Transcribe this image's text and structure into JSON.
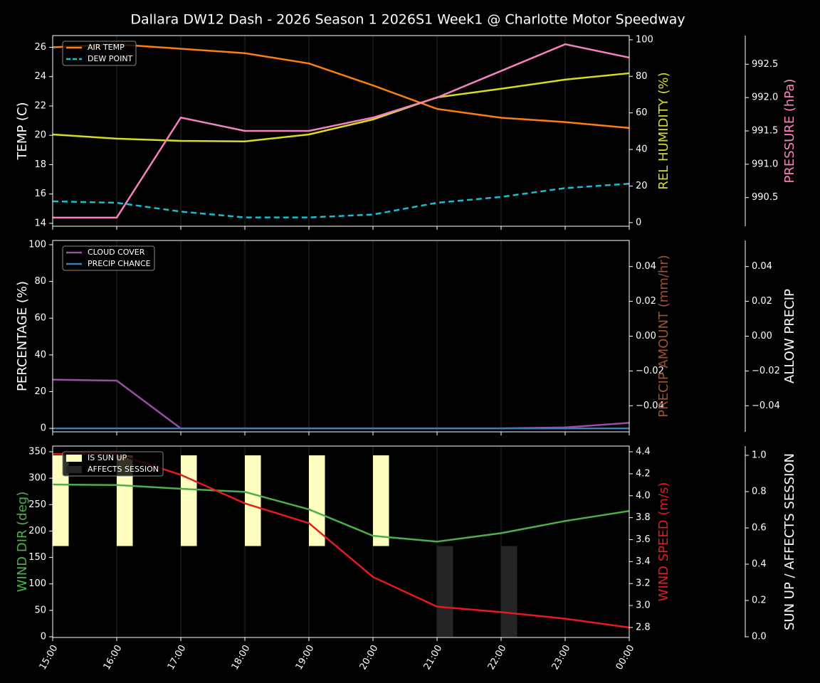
{
  "title": "Dallara DW12 Dash - 2026 Season 1 2026S1 Week1 @ Charlotte Motor Speedway",
  "chart_data": [
    {
      "type": "line",
      "legend": "upper left",
      "xgrid": true,
      "ylabel": "TEMP (C)",
      "ylabel_color": "#ffffff",
      "ylim": [
        13.8,
        26.8
      ],
      "yticks": [
        14,
        16,
        18,
        20,
        22,
        24,
        26
      ],
      "y2label": "REL HUMIDITY (%)",
      "y2label_color": "#d8dc1c",
      "y2lim": [
        -2,
        102.3
      ],
      "y2ticks": [
        0,
        20,
        40,
        60,
        80,
        100
      ],
      "y3label": "PRESSURE (hPa)",
      "y3label_color": "#f781bf",
      "y3lim": [
        990.07,
        992.93
      ],
      "y3ticks": [
        990.5,
        {
          "value": 991,
          "label": "991.0"
        },
        991.5,
        {
          "value": 992,
          "label": "992.0"
        },
        992.5
      ],
      "series": [
        {
          "name": "AIR TEMP",
          "color": "#ff7f0e",
          "kind": "line",
          "axis": "y",
          "values": [
            26.0,
            26.2,
            25.9,
            25.6,
            24.9,
            23.4,
            21.8,
            21.2,
            20.9,
            20.5
          ]
        },
        {
          "name": "DEW POINT",
          "color": "#17becf",
          "kind": "line",
          "dashed": true,
          "axis": "y",
          "values": [
            15.5,
            15.4,
            14.8,
            14.4,
            14.4,
            14.6,
            15.4,
            15.8,
            16.4,
            16.7
          ]
        },
        {
          "color": "#d8dc1c",
          "kind": "line",
          "axis": "y2",
          "values": [
            48.2,
            45.9,
            44.7,
            44.4,
            48.2,
            56.4,
            68.5,
            73.2,
            78.2,
            81.7
          ]
        },
        {
          "color": "#f781bf",
          "kind": "line",
          "axis": "y3",
          "values": [
            990.2,
            990.2,
            991.7,
            991.5,
            991.5,
            991.7,
            992.0,
            992.4,
            992.8,
            992.6
          ]
        }
      ]
    },
    {
      "type": "line",
      "legend": "upper left",
      "xgrid": true,
      "ylabel": "PERCENTAGE (%)",
      "ylabel_color": "#ffffff",
      "ylim": [
        -1.9,
        102.3
      ],
      "yticks": [
        0,
        20,
        40,
        60,
        80,
        100
      ],
      "y2label": "PRECIP AMOUNT (mm/hr)",
      "y2label_color": "#a0522d",
      "y2lim": [
        -0.055,
        0.055
      ],
      "y2ticks": [
        {
          "value": -0.04,
          "label": "−0.04"
        },
        {
          "value": -0.02,
          "label": "−0.02"
        },
        {
          "value": 0,
          "label": "0.00"
        },
        0.02,
        0.04
      ],
      "y3label": "ALLOW PRECIP",
      "y3label_color": "#ffffff",
      "y3lim": [
        -0.055,
        0.055
      ],
      "y3ticks": [
        {
          "value": -0.04,
          "label": "−0.04"
        },
        {
          "value": -0.02,
          "label": "−0.02"
        },
        {
          "value": 0,
          "label": "0.00"
        },
        0.02,
        0.04
      ],
      "series": [
        {
          "name": "CLOUD COVER",
          "color": "#984ea3",
          "kind": "line",
          "axis": "y",
          "values": [
            26.5,
            26,
            0,
            0,
            0,
            0,
            0,
            0,
            0.5,
            3
          ]
        },
        {
          "name": "PRECIP CHANCE",
          "color": "#377eb8",
          "kind": "line",
          "axis": "y",
          "values": [
            0,
            0,
            0,
            0,
            0,
            0,
            0,
            0,
            0,
            0
          ]
        }
      ]
    },
    {
      "type": "line",
      "legend": "upper left",
      "xgrid": true,
      "categories": [
        "15:00",
        "16:00",
        "17:00",
        "18:00",
        "19:00",
        "20:00",
        "21:00",
        "22:00",
        "23:00",
        "00:00"
      ],
      "ylabel": "WIND DIR (deg)",
      "ylabel_color": "#4daf4a",
      "ylim": [
        -1.3,
        360.7
      ],
      "yticks": [
        0,
        50,
        100,
        150,
        200,
        250,
        300,
        350
      ],
      "y2label": "WIND SPEED (m/s)",
      "y2label_color": "#e41a1c",
      "y2lim": [
        2.709,
        4.452
      ],
      "y2ticks": [
        2.8,
        {
          "value": 3,
          "label": "3.0"
        },
        3.2,
        3.4,
        3.6,
        3.8,
        {
          "value": 4,
          "label": "4.0"
        },
        4.2,
        4.4
      ],
      "y3label": "SUN UP / AFFECTS SESSION",
      "y3label_color": "#ffffff",
      "y3lim": [
        -0.004,
        1.051
      ],
      "y3ticks": [
        {
          "value": 0,
          "label": "0.0"
        },
        0.2,
        0.4,
        0.6,
        0.8,
        {
          "value": 1,
          "label": "1.0"
        }
      ],
      "series": [
        {
          "name": "IS SUN UP",
          "color": "#ffffc0",
          "kind": "bar",
          "axis": "y3",
          "base": 0.5,
          "values": [
            0.5,
            0.5,
            0.5,
            0.5,
            0.5,
            0.5,
            0,
            0,
            0,
            0
          ]
        },
        {
          "name": "AFFECTS SESSION",
          "color": "#252525",
          "kind": "bar",
          "axis": "y3",
          "values": [
            0,
            0,
            0,
            0,
            0,
            0,
            0.5,
            0.5,
            0,
            0
          ]
        },
        {
          "color": "#4daf4a",
          "kind": "line",
          "axis": "y",
          "values": [
            288,
            287,
            280,
            274,
            241,
            191,
            180,
            196,
            219,
            238
          ]
        },
        {
          "color": "#e41a1c",
          "kind": "line",
          "axis": "y2",
          "values": [
            4.38,
            4.38,
            4.19,
            3.93,
            3.75,
            3.26,
            2.99,
            2.94,
            2.88,
            2.8
          ]
        }
      ]
    }
  ]
}
